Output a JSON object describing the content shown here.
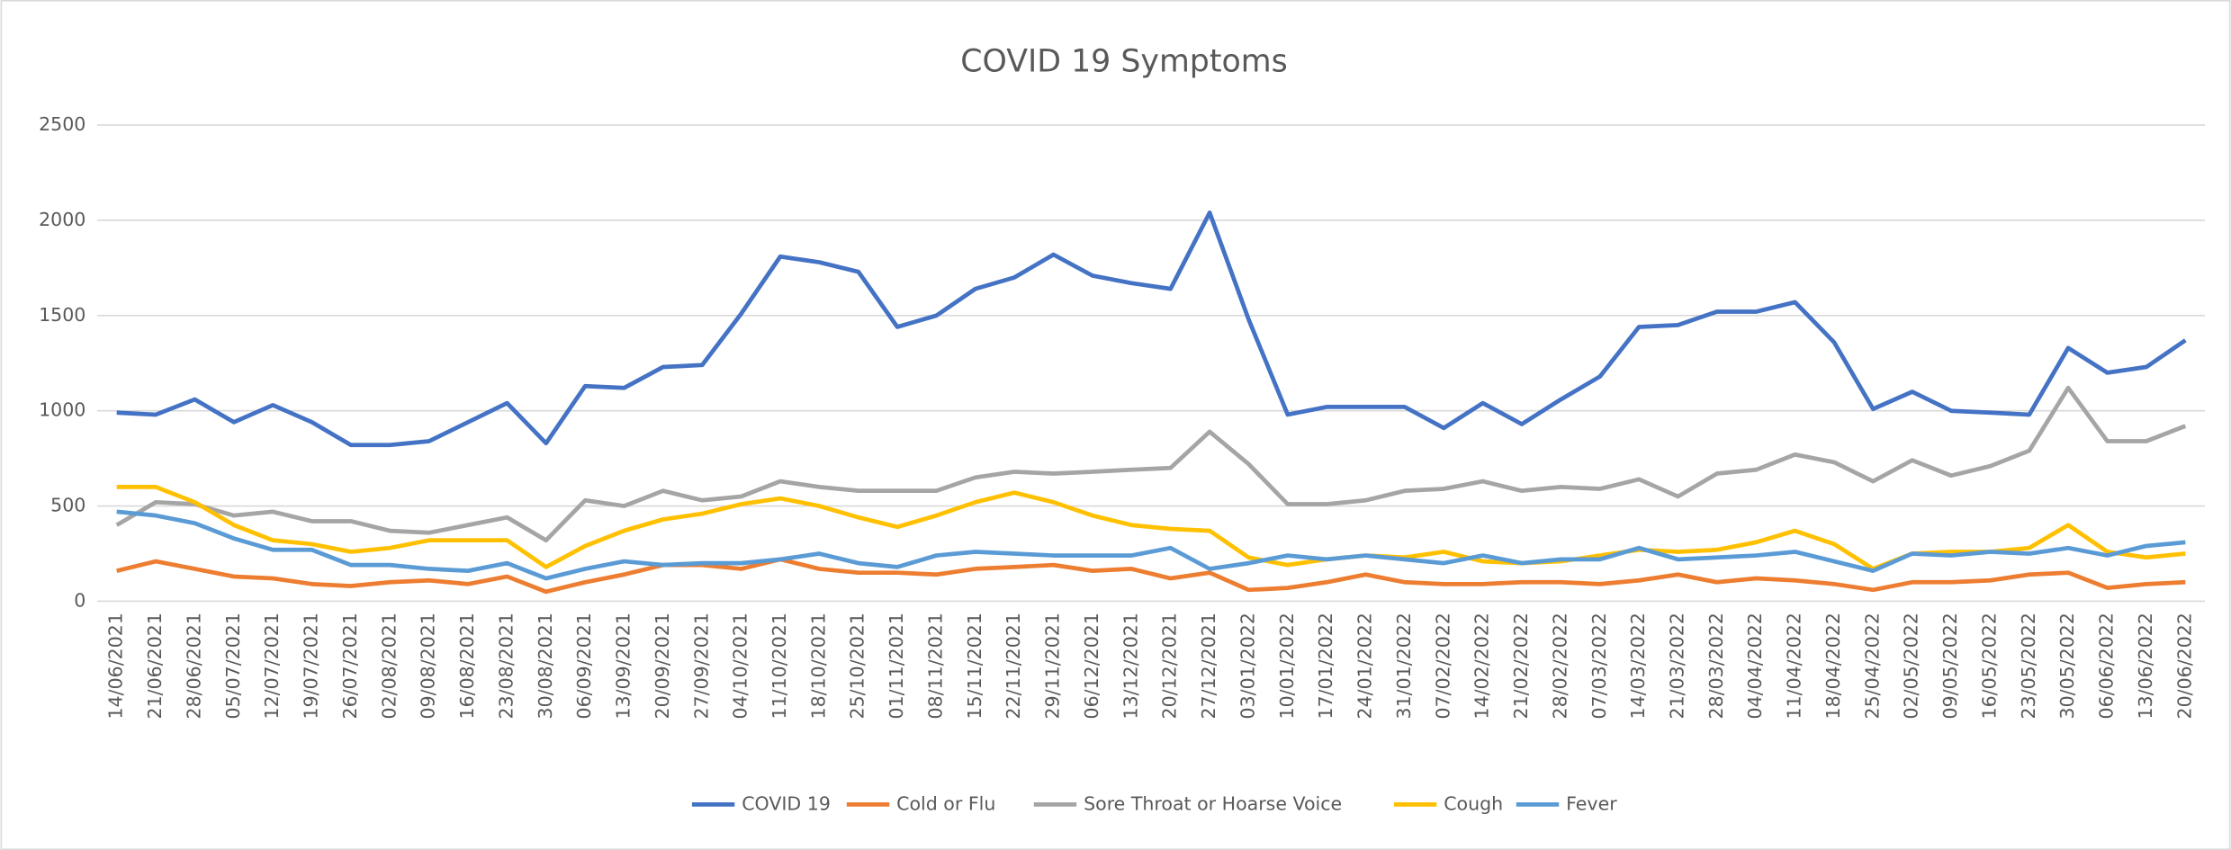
{
  "chart_data": {
    "type": "line",
    "title": "COVID 19 Symptoms",
    "categories": [
      "14/06/2021",
      "21/06/2021",
      "28/06/2021",
      "05/07/2021",
      "12/07/2021",
      "19/07/2021",
      "26/07/2021",
      "02/08/2021",
      "09/08/2021",
      "16/08/2021",
      "23/08/2021",
      "30/08/2021",
      "06/09/2021",
      "13/09/2021",
      "20/09/2021",
      "27/09/2021",
      "04/10/2021",
      "11/10/2021",
      "18/10/2021",
      "25/10/2021",
      "01/11/2021",
      "08/11/2021",
      "15/11/2021",
      "22/11/2021",
      "29/11/2021",
      "06/12/2021",
      "13/12/2021",
      "20/12/2021",
      "27/12/2021",
      "03/01/2022",
      "10/01/2022",
      "17/01/2022",
      "24/01/2022",
      "31/01/2022",
      "07/02/2022",
      "14/02/2022",
      "21/02/2022",
      "28/02/2022",
      "07/03/2022",
      "14/03/2022",
      "21/03/2022",
      "28/03/2022",
      "04/04/2022",
      "11/04/2022",
      "18/04/2022",
      "25/04/2022",
      "02/05/2022",
      "09/05/2022",
      "16/05/2022",
      "23/05/2022",
      "30/05/2022",
      "06/06/2022",
      "13/06/2022",
      "20/06/2022"
    ],
    "series": [
      {
        "name": "COVID 19",
        "color": "#4472c4",
        "values": [
          990,
          980,
          1060,
          940,
          1030,
          940,
          820,
          820,
          840,
          940,
          1040,
          830,
          1130,
          1120,
          1230,
          1240,
          1510,
          1810,
          1780,
          1730,
          1440,
          1500,
          1640,
          1700,
          1820,
          1710,
          1670,
          1640,
          2040,
          1480,
          980,
          1020,
          1020,
          1020,
          910,
          1040,
          930,
          1060,
          1180,
          1440,
          1450,
          1520,
          1520,
          1570,
          1360,
          1010,
          1100,
          1000,
          990,
          980,
          1330,
          1200,
          1230,
          1370
        ]
      },
      {
        "name": "Cold or Flu",
        "color": "#ed7d31",
        "values": [
          160,
          210,
          170,
          130,
          120,
          90,
          80,
          100,
          110,
          90,
          130,
          50,
          100,
          140,
          190,
          190,
          170,
          220,
          170,
          150,
          150,
          140,
          170,
          180,
          190,
          160,
          170,
          120,
          150,
          60,
          70,
          100,
          140,
          100,
          90,
          90,
          100,
          100,
          90,
          110,
          140,
          100,
          120,
          110,
          90,
          60,
          100,
          100,
          110,
          140,
          150,
          70,
          90,
          100
        ]
      },
      {
        "name": "Sore Throat or Hoarse Voice",
        "color": "#a5a5a5",
        "values": [
          400,
          520,
          510,
          450,
          470,
          420,
          420,
          370,
          360,
          400,
          440,
          320,
          530,
          500,
          580,
          530,
          550,
          630,
          600,
          580,
          580,
          580,
          650,
          680,
          670,
          680,
          690,
          700,
          890,
          720,
          510,
          510,
          530,
          580,
          590,
          630,
          580,
          600,
          590,
          640,
          550,
          670,
          690,
          770,
          730,
          630,
          740,
          660,
          710,
          790,
          1120,
          840,
          840,
          920
        ]
      },
      {
        "name": "Cough",
        "color": "#ffc000",
        "values": [
          600,
          600,
          520,
          400,
          320,
          300,
          260,
          280,
          320,
          320,
          320,
          180,
          290,
          370,
          430,
          460,
          510,
          540,
          500,
          440,
          390,
          450,
          520,
          570,
          520,
          450,
          400,
          380,
          370,
          230,
          190,
          220,
          240,
          230,
          260,
          210,
          200,
          210,
          240,
          270,
          260,
          270,
          310,
          370,
          300,
          170,
          250,
          260,
          260,
          280,
          400,
          260,
          230,
          250
        ]
      },
      {
        "name": "Fever",
        "color": "#5b9bd5",
        "values": [
          470,
          450,
          410,
          330,
          270,
          270,
          190,
          190,
          170,
          160,
          200,
          120,
          170,
          210,
          190,
          200,
          200,
          220,
          250,
          200,
          180,
          240,
          260,
          250,
          240,
          240,
          240,
          280,
          170,
          200,
          240,
          220,
          240,
          220,
          200,
          240,
          200,
          220,
          220,
          280,
          220,
          230,
          240,
          260,
          210,
          160,
          250,
          240,
          260,
          250,
          280,
          240,
          290,
          310
        ]
      }
    ],
    "ylim": [
      0,
      2500
    ],
    "yticks": [
      0,
      500,
      1000,
      1500,
      2000,
      2500
    ],
    "grid": true,
    "legend": "bottom"
  }
}
